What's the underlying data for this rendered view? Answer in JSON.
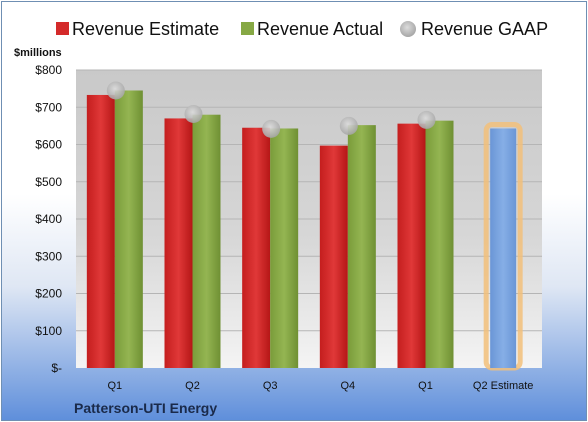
{
  "chart_data": {
    "type": "bar",
    "categories": [
      "Q1",
      "Q2",
      "Q3",
      "Q4",
      "Q1",
      "Q2 Estimate"
    ],
    "series": [
      {
        "name": "Revenue Estimate",
        "color": "#d42a2a",
        "values": [
          733,
          670,
          645,
          597,
          656,
          null
        ]
      },
      {
        "name": "Revenue Actual",
        "color": "#86a844",
        "values": [
          745,
          680,
          643,
          652,
          664,
          null
        ]
      },
      {
        "name": "Revenue GAAP",
        "color": "#b8b8b8",
        "values": [
          745,
          682,
          642,
          650,
          666,
          null
        ]
      }
    ],
    "estimate_bar": {
      "category": "Q2 Estimate",
      "value": 643,
      "color": "#6f9bd9",
      "glow": "#f2c07a"
    },
    "ylabel": "$millions",
    "ylim": [
      0,
      800
    ],
    "yticks": [
      0,
      100,
      200,
      300,
      400,
      500,
      600,
      700,
      800
    ],
    "ytick_labels": [
      "$-",
      "$100",
      "$200",
      "$300",
      "$400",
      "$500",
      "$600",
      "$700",
      "$800"
    ],
    "grid": true,
    "legend": "top"
  },
  "footer": {
    "company": "Patterson-UTI Energy"
  }
}
